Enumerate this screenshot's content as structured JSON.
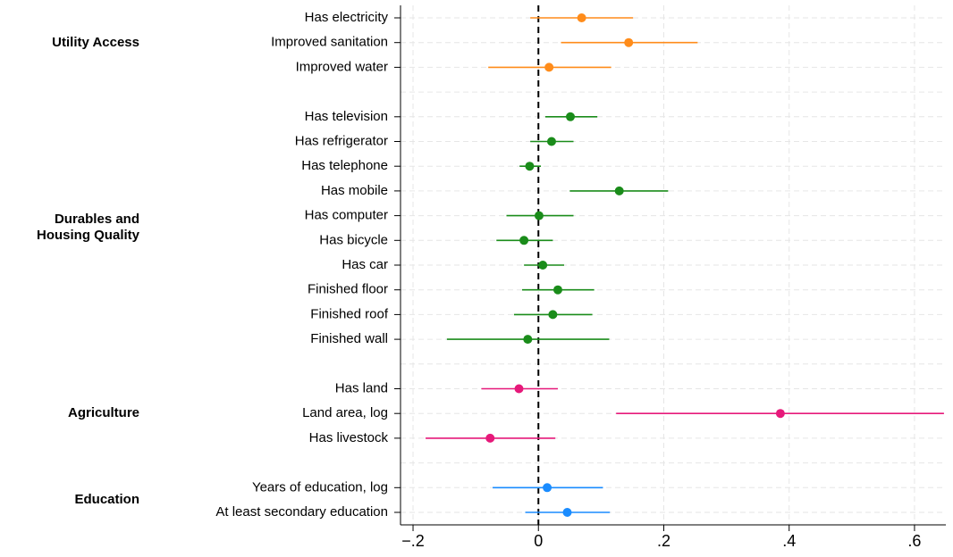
{
  "chart_data": {
    "type": "coefplot",
    "xlim": [
      -0.22,
      0.65
    ],
    "xticks": [
      {
        "value": -0.2,
        "label": "−.2"
      },
      0,
      {
        "value": 0.2,
        "label": ".2"
      },
      {
        "value": 0.4,
        "label": ".4"
      },
      {
        "value": 0.6,
        "label": ".6"
      }
    ],
    "xline": 0,
    "grid": true,
    "series": [
      {
        "name": "Utility Access",
        "color": "#ff8c1a",
        "categories": [
          "Has electricity",
          "Improved sanitation",
          "Improved water"
        ],
        "values": [
          0.069,
          0.144,
          0.017
        ],
        "lower": [
          -0.013,
          0.036,
          -0.08
        ],
        "upper": [
          0.151,
          0.254,
          0.116
        ]
      },
      {
        "name": "Durables and Housing Quality",
        "color": "#1a8c1a",
        "categories": [
          "Has television",
          "Has refrigerator",
          "Has telephone",
          "Has mobile",
          "Has computer",
          "Has bicycle",
          "Has car",
          "Finished floor",
          "Finished roof",
          "Finished wall"
        ],
        "values": [
          0.051,
          0.021,
          -0.014,
          0.129,
          0.001,
          -0.023,
          0.007,
          0.031,
          0.023,
          -0.017
        ],
        "lower": [
          0.011,
          -0.013,
          -0.03,
          0.05,
          -0.051,
          -0.067,
          -0.023,
          -0.026,
          -0.039,
          -0.146
        ],
        "upper": [
          0.094,
          0.056,
          0.004,
          0.207,
          0.056,
          0.023,
          0.041,
          0.089,
          0.086,
          0.113
        ]
      },
      {
        "name": "Agriculture",
        "color": "#e6197a",
        "categories": [
          "Has land",
          "Land area, log",
          "Has livestock"
        ],
        "values": [
          -0.031,
          0.386,
          -0.077
        ],
        "lower": [
          -0.091,
          0.124,
          -0.18
        ],
        "upper": [
          0.031,
          0.647,
          0.027
        ]
      },
      {
        "name": "Education",
        "color": "#1a8cff",
        "categories": [
          "Years of education, log",
          "At least secondary education"
        ],
        "values": [
          0.014,
          0.046
        ],
        "lower": [
          -0.073,
          -0.021
        ],
        "upper": [
          0.103,
          0.114
        ]
      }
    ]
  }
}
